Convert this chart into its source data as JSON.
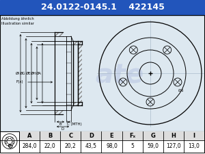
{
  "part_number": "24.0122-0145.1",
  "ref_number": "422145",
  "bg_color_header": "#2255bb",
  "header_text_color": "#ffffff",
  "small_text_left": "Abbildung ähnlich\nIllustration similar",
  "table_headers": [
    "A",
    "B",
    "C",
    "D",
    "E",
    "Fₓ",
    "G",
    "H",
    "I"
  ],
  "table_values": [
    "284,0",
    "22,0",
    "20,2",
    "43,5",
    "98,0",
    "5",
    "59,0",
    "127,0",
    "13,0"
  ],
  "watermark_color": "#c8d4e8",
  "draw_bg_color": "#dde8f0",
  "hatch_color": "#888888",
  "header_fontsize": 9,
  "table_header_fontsize": 6,
  "table_value_fontsize": 5.5
}
